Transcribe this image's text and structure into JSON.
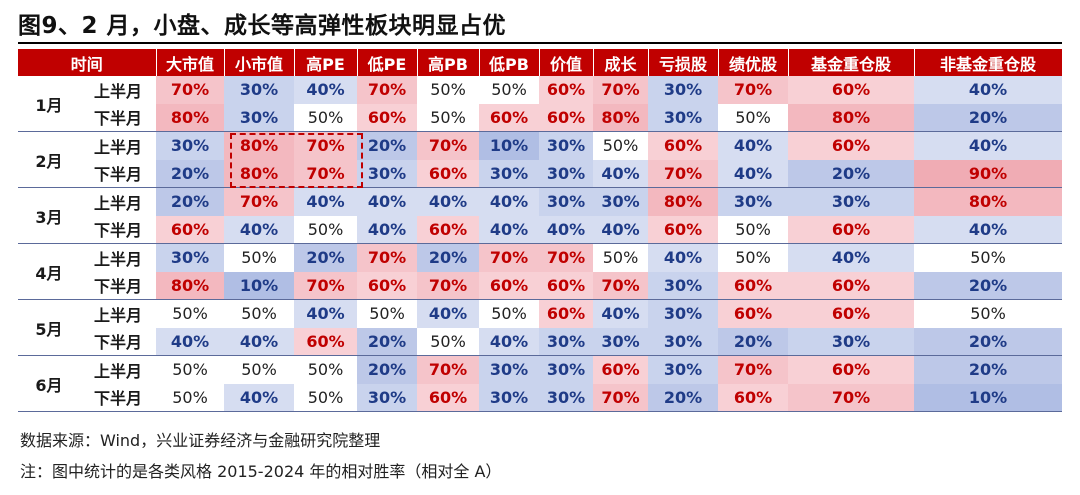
{
  "title": "图9、2 月，小盘、成长等高弹性板块明显占优",
  "source": "数据来源：Wind，兴业证券经济与金融研究院整理",
  "note": "注：图中统计的是各类风格 2015-2024 年的相对胜率（相对全 A）",
  "colors": {
    "header_bg": "#c00000",
    "high": "#c00000",
    "low": "#1f3b87"
  },
  "chart_data": {
    "type": "table",
    "columns": [
      "时间",
      "大市值",
      "小市值",
      "高PE",
      "低PE",
      "高PB",
      "低PB",
      "价值",
      "成长",
      "亏损股",
      "绩优股",
      "基金重仓股",
      "非基金重仓股"
    ],
    "rows": [
      {
        "month": "1月",
        "half": "上半月",
        "values": [
          "70%",
          "30%",
          "40%",
          "70%",
          "50%",
          "50%",
          "60%",
          "70%",
          "30%",
          "70%",
          "60%",
          "40%"
        ]
      },
      {
        "month": "1月",
        "half": "下半月",
        "values": [
          "80%",
          "30%",
          "50%",
          "60%",
          "50%",
          "60%",
          "60%",
          "80%",
          "30%",
          "50%",
          "80%",
          "20%"
        ]
      },
      {
        "month": "2月",
        "half": "上半月",
        "values": [
          "30%",
          "80%",
          "70%",
          "20%",
          "70%",
          "10%",
          "30%",
          "50%",
          "60%",
          "40%",
          "60%",
          "40%"
        ]
      },
      {
        "month": "2月",
        "half": "下半月",
        "values": [
          "20%",
          "80%",
          "70%",
          "30%",
          "60%",
          "30%",
          "30%",
          "40%",
          "70%",
          "40%",
          "20%",
          "90%"
        ]
      },
      {
        "month": "3月",
        "half": "上半月",
        "values": [
          "20%",
          "70%",
          "40%",
          "40%",
          "40%",
          "40%",
          "30%",
          "30%",
          "80%",
          "30%",
          "30%",
          "80%"
        ]
      },
      {
        "month": "3月",
        "half": "下半月",
        "values": [
          "60%",
          "40%",
          "50%",
          "40%",
          "60%",
          "40%",
          "40%",
          "40%",
          "60%",
          "50%",
          "60%",
          "40%"
        ]
      },
      {
        "month": "4月",
        "half": "上半月",
        "values": [
          "30%",
          "50%",
          "20%",
          "70%",
          "20%",
          "70%",
          "70%",
          "50%",
          "40%",
          "50%",
          "40%",
          "50%"
        ]
      },
      {
        "month": "4月",
        "half": "下半月",
        "values": [
          "80%",
          "10%",
          "70%",
          "60%",
          "70%",
          "60%",
          "60%",
          "70%",
          "30%",
          "60%",
          "60%",
          "20%"
        ]
      },
      {
        "month": "5月",
        "half": "上半月",
        "values": [
          "50%",
          "50%",
          "40%",
          "50%",
          "40%",
          "50%",
          "60%",
          "40%",
          "30%",
          "60%",
          "60%",
          "50%"
        ]
      },
      {
        "month": "5月",
        "half": "下半月",
        "values": [
          "40%",
          "40%",
          "60%",
          "20%",
          "50%",
          "40%",
          "30%",
          "30%",
          "30%",
          "20%",
          "30%",
          "20%"
        ]
      },
      {
        "month": "6月",
        "half": "上半月",
        "values": [
          "50%",
          "50%",
          "50%",
          "20%",
          "70%",
          "30%",
          "30%",
          "60%",
          "30%",
          "70%",
          "60%",
          "20%"
        ]
      },
      {
        "month": "6月",
        "half": "下半月",
        "values": [
          "50%",
          "40%",
          "50%",
          "30%",
          "60%",
          "30%",
          "30%",
          "70%",
          "20%",
          "60%",
          "70%",
          "10%"
        ]
      }
    ],
    "highlight": {
      "months": [
        "2月"
      ],
      "columns": [
        "小市值",
        "高PE"
      ]
    }
  }
}
